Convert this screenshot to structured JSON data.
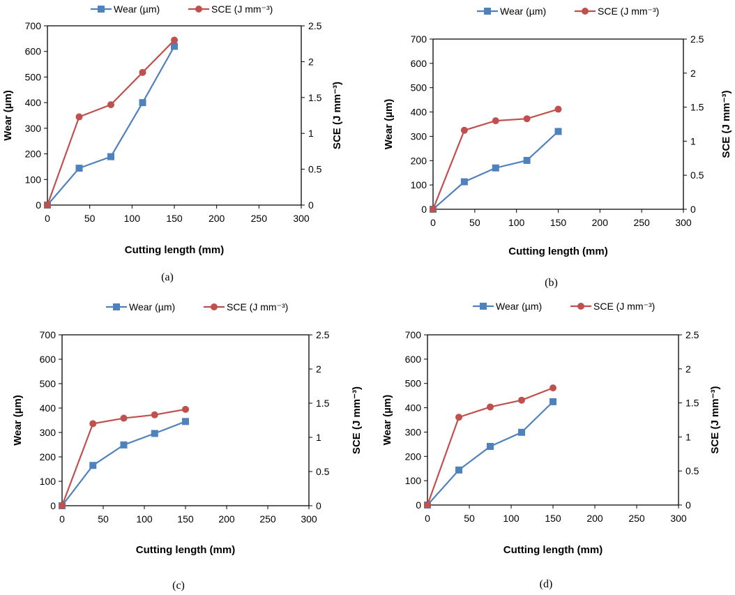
{
  "figure": {
    "panel_captions": [
      "(a)",
      "(b)",
      "(c)",
      "(d)"
    ]
  },
  "colors": {
    "wear": "#4F81BD",
    "sce": "#C0504D",
    "axis": "#000000"
  },
  "chart_data": [
    {
      "type": "line",
      "panel": "(a)",
      "title": "",
      "xlabel": "Cutting length (mm)",
      "ylabel": "Wear (µm)",
      "y2label": "SCE (J  mm⁻³)",
      "x": [
        0,
        37.5,
        75,
        112.5,
        150
      ],
      "xlim": [
        0,
        300
      ],
      "xticks": [
        0,
        50,
        100,
        150,
        200,
        250,
        300
      ],
      "ylim": [
        0,
        700
      ],
      "yticks": [
        0,
        100,
        200,
        300,
        400,
        500,
        600,
        700
      ],
      "y2lim": [
        0,
        2.5
      ],
      "y2ticks": [
        "0",
        "0.5",
        "1",
        "1.5",
        "2",
        "2.5"
      ],
      "grid": false,
      "legend": "top",
      "series": [
        {
          "name": "Wear (µm)",
          "axis": "left",
          "marker": "square",
          "values": [
            0,
            144,
            189,
            400,
            620
          ]
        },
        {
          "name": "SCE (J  mm⁻³)",
          "axis": "right",
          "marker": "circle",
          "values": [
            0,
            1.23,
            1.4,
            1.85,
            2.3
          ]
        }
      ]
    },
    {
      "type": "line",
      "panel": "(b)",
      "title": "",
      "xlabel": "Cutting length (mm)",
      "ylabel": "Wear (µm)",
      "y2label": "SCE (J  mm⁻³)",
      "x": [
        0,
        37.5,
        75,
        112.5,
        150
      ],
      "xlim": [
        0,
        300
      ],
      "xticks": [
        0,
        50,
        100,
        150,
        200,
        250,
        300
      ],
      "ylim": [
        0,
        700
      ],
      "yticks": [
        0,
        100,
        200,
        300,
        400,
        500,
        600,
        700
      ],
      "y2lim": [
        0,
        2.5
      ],
      "y2ticks": [
        "0",
        "0.5",
        "1",
        "1.5",
        "2",
        "2.5"
      ],
      "grid": false,
      "legend": "top",
      "series": [
        {
          "name": "Wear (µm)",
          "axis": "left",
          "marker": "square",
          "values": [
            0,
            113,
            170,
            201,
            320
          ]
        },
        {
          "name": "SCE (J  mm⁻³)",
          "axis": "right",
          "marker": "circle",
          "values": [
            0,
            1.16,
            1.3,
            1.33,
            1.47
          ]
        }
      ]
    },
    {
      "type": "line",
      "panel": "(c)",
      "title": "",
      "xlabel": "Cutting length (mm)",
      "ylabel": "Wear (µm)",
      "y2label": "SCE (J  mm⁻³)",
      "x": [
        0,
        37.5,
        75,
        112.5,
        150
      ],
      "xlim": [
        0,
        300
      ],
      "xticks": [
        0,
        50,
        100,
        150,
        200,
        250,
        300
      ],
      "ylim": [
        0,
        700
      ],
      "yticks": [
        0,
        100,
        200,
        300,
        400,
        500,
        600,
        700
      ],
      "y2lim": [
        0,
        2.5
      ],
      "y2ticks": [
        "0",
        "0.5",
        "1",
        "1.5",
        "2",
        "2.5"
      ],
      "grid": false,
      "legend": "top",
      "series": [
        {
          "name": "Wear (µm)",
          "axis": "left",
          "marker": "square",
          "values": [
            0,
            165,
            249,
            296,
            345
          ]
        },
        {
          "name": "SCE (J  mm⁻³)",
          "axis": "right",
          "marker": "circle",
          "values": [
            0,
            1.2,
            1.28,
            1.33,
            1.41
          ]
        }
      ]
    },
    {
      "type": "line",
      "panel": "(d)",
      "title": "",
      "xlabel": "Cutting length (mm)",
      "ylabel": "Wear (µm)",
      "y2label": "SCE (J  mm⁻³)",
      "x": [
        0,
        37.5,
        75,
        112.5,
        150
      ],
      "xlim": [
        0,
        300
      ],
      "xticks": [
        0,
        50,
        100,
        150,
        200,
        250,
        300
      ],
      "ylim": [
        0,
        700
      ],
      "yticks": [
        0,
        100,
        200,
        300,
        400,
        500,
        600,
        700
      ],
      "y2lim": [
        0,
        2.5
      ],
      "y2ticks": [
        "0",
        "0.5",
        "1",
        "1.5",
        "2",
        "2.5"
      ],
      "grid": false,
      "legend": "top",
      "series": [
        {
          "name": "Wear (µm)",
          "axis": "left",
          "marker": "square",
          "values": [
            0,
            144,
            241,
            299,
            425
          ]
        },
        {
          "name": "SCE (J  mm⁻³)",
          "axis": "right",
          "marker": "circle",
          "values": [
            0,
            1.29,
            1.44,
            1.54,
            1.72
          ]
        }
      ]
    }
  ]
}
